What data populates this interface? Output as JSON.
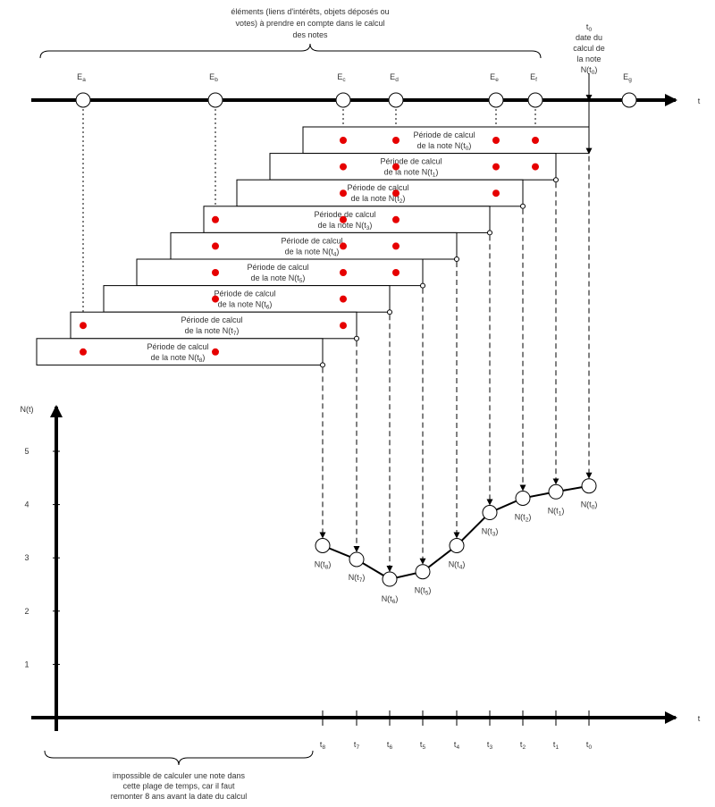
{
  "top_brace_text": [
    "éléments (liens d'intérêts, objets déposés ou",
    "votes) à prendre en compte dans le calcul",
    "des notes"
  ],
  "t0_note": {
    "t0": "t",
    "t0_sub": "0",
    "lines": [
      "date du",
      "calcul de",
      "la note"
    ],
    "n_prefix": "N(t",
    "n_sub": "0",
    "n_suffix": ")"
  },
  "axis_t_label": "t",
  "elements": [
    {
      "main": "E",
      "sub": "a"
    },
    {
      "main": "E",
      "sub": "b"
    },
    {
      "main": "E",
      "sub": "c"
    },
    {
      "main": "E",
      "sub": "d"
    },
    {
      "main": "E",
      "sub": "e"
    },
    {
      "main": "E",
      "sub": "f"
    },
    {
      "main": "E",
      "sub": "g"
    }
  ],
  "periods": [
    {
      "line1": "Période de calcul",
      "prefix": "de la note N(t",
      "sub": "0",
      "suffix": ")",
      "dots": [
        "c",
        "d",
        "e",
        "f"
      ]
    },
    {
      "line1": "Période de calcul",
      "prefix": "de la note N(t",
      "sub": "1",
      "suffix": ")",
      "dots": [
        "c",
        "d",
        "e",
        "f"
      ]
    },
    {
      "line1": "Période de calcul",
      "prefix": "de la note N(t",
      "sub": "2",
      "suffix": ")",
      "dots": [
        "c",
        "d",
        "e"
      ]
    },
    {
      "line1": "Période de calcul",
      "prefix": "de la note N(t",
      "sub": "3",
      "suffix": ")",
      "dots": [
        "b",
        "c",
        "d"
      ]
    },
    {
      "line1": "Période de calcul",
      "prefix": "de la note N(t",
      "sub": "4",
      "suffix": ")",
      "dots": [
        "b",
        "c",
        "d"
      ]
    },
    {
      "line1": "Période de calcul",
      "prefix": "de la note N(t",
      "sub": "5",
      "suffix": ")",
      "dots": [
        "b",
        "c",
        "d"
      ]
    },
    {
      "line1": "Période de calcul",
      "prefix": "de la note N(t",
      "sub": "6",
      "suffix": ")",
      "dots": [
        "b",
        "c"
      ]
    },
    {
      "line1": "Période de calcul",
      "prefix": "de la note N(t",
      "sub": "7",
      "suffix": ")",
      "dots": [
        "a",
        "c"
      ]
    },
    {
      "line1": "Période de calcul",
      "prefix": "de la note N(t",
      "sub": "8",
      "suffix": ")",
      "dots": [
        "a",
        "b"
      ]
    }
  ],
  "graph": {
    "y_label": "N(t)",
    "y_ticks": [
      "1",
      "2",
      "3",
      "4",
      "5"
    ],
    "y_range": [
      0,
      5
    ],
    "x_label": "t",
    "points": [
      {
        "t": "t",
        "sub": "0",
        "n_prefix": "N(t",
        "n_suffix": ")",
        "value": 4.35
      },
      {
        "t": "t",
        "sub": "1",
        "n_prefix": "N(t",
        "n_suffix": ")",
        "value": 4.24
      },
      {
        "t": "t",
        "sub": "2",
        "n_prefix": "N(t",
        "n_suffix": ")",
        "value": 4.12
      },
      {
        "t": "t",
        "sub": "3",
        "n_prefix": "N(t",
        "n_suffix": ")",
        "value": 3.85
      },
      {
        "t": "t",
        "sub": "4",
        "n_prefix": "N(t",
        "n_suffix": ")",
        "value": 3.23
      },
      {
        "t": "t",
        "sub": "5",
        "n_prefix": "N(t",
        "n_suffix": ")",
        "value": 2.74
      },
      {
        "t": "t",
        "sub": "6",
        "n_prefix": "N(t",
        "n_suffix": ")",
        "value": 2.6
      },
      {
        "t": "t",
        "sub": "7",
        "n_prefix": "N(t",
        "n_suffix": ")",
        "value": 2.97
      },
      {
        "t": "t",
        "sub": "8",
        "n_prefix": "N(t",
        "n_suffix": ")",
        "value": 3.23
      }
    ]
  },
  "bottom_brace_text": [
    "impossible de calculer une note dans",
    "cette plage de temps, car il faut",
    "remonter 8 ans avant la date du calcul"
  ],
  "colors": {
    "dot": "#e60000",
    "line": "#000000",
    "text": "#333333"
  }
}
